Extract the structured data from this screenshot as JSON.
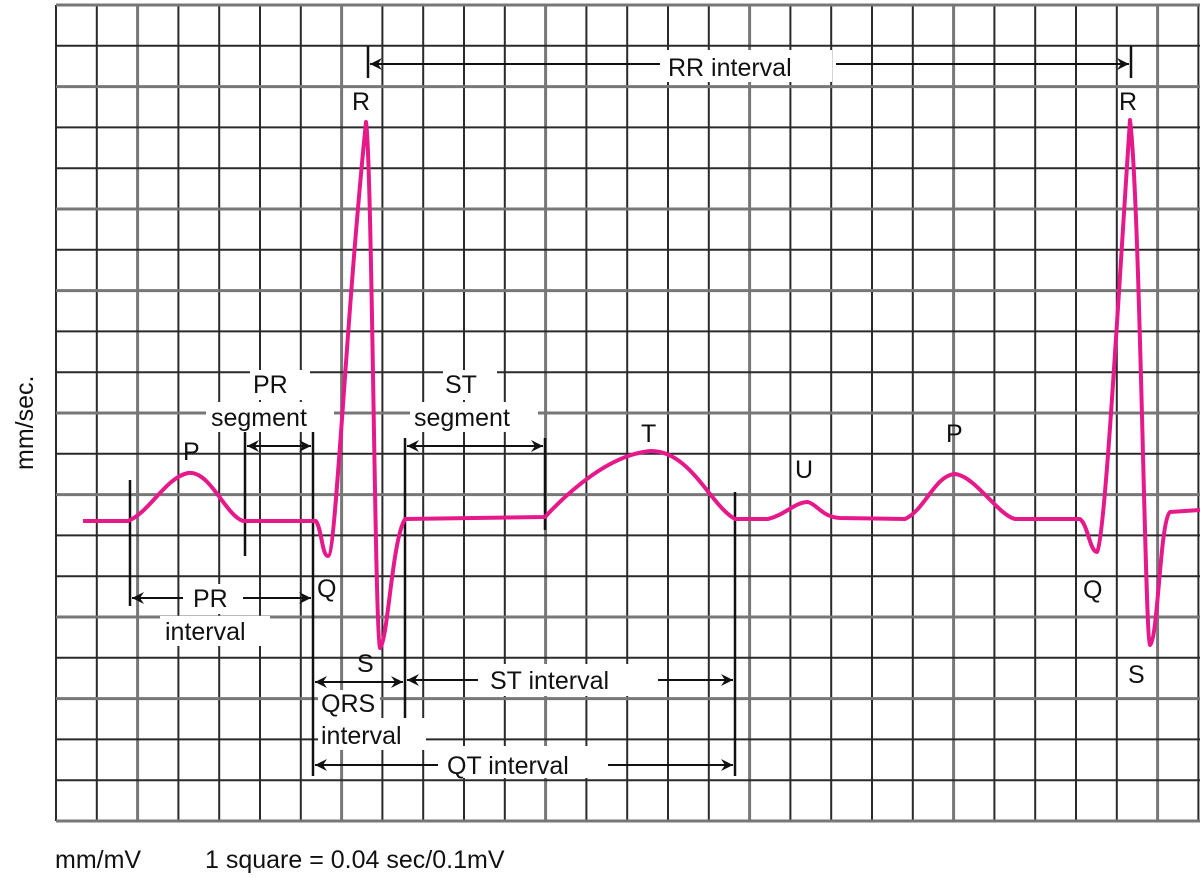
{
  "colors": {
    "trace": "#e6198a",
    "grid": "#333333",
    "annotation": "#111111"
  },
  "axis_label_vertical": "mm/sec.",
  "footer": {
    "units": "mm/mV",
    "scale": "1 square = 0.04 sec/0.1mV"
  },
  "waves": {
    "p1": "P",
    "q1": "Q",
    "r1": "R",
    "s1": "S",
    "t": "T",
    "u": "U",
    "p2": "P",
    "q2": "Q",
    "r2": "R",
    "s2": "S"
  },
  "intervals": {
    "rr": "RR interval",
    "pr_segment_1": "PR",
    "pr_segment_2": "segment",
    "st_segment_1": "ST",
    "st_segment_2": "segment",
    "pr_interval_1": "PR",
    "pr_interval_2": "interval",
    "qrs_interval_1": "QRS",
    "qrs_interval_2": "interval",
    "st_interval": "ST interval",
    "qt_interval": "QT interval"
  }
}
